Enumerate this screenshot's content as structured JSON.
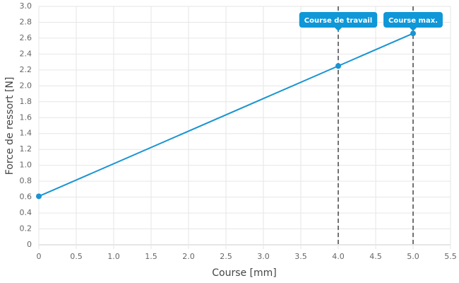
{
  "chart_data": {
    "type": "line",
    "x": [
      0,
      4,
      5
    ],
    "values": [
      0.61,
      2.25,
      2.66
    ],
    "color": "#1a94d2",
    "xlabel": "Course [mm]",
    "ylabel": "Force de ressort [N]",
    "xlim": [
      0,
      5.5
    ],
    "ylim": [
      0,
      3.0
    ],
    "xticks": [
      0,
      0.5,
      {
        "value": 1,
        "label": "1.0"
      },
      1.5,
      {
        "value": 2,
        "label": "2.0"
      },
      2.5,
      {
        "value": 3,
        "label": "3.0"
      },
      3.5,
      {
        "value": 4,
        "label": "4.0"
      },
      4.5,
      {
        "value": 5,
        "label": "5.0"
      },
      5.5
    ],
    "yticks": [
      0,
      0.2,
      0.4,
      0.6,
      0.8,
      {
        "value": 1,
        "label": "1.0"
      },
      1.2,
      1.4,
      1.6,
      1.8,
      {
        "value": 2,
        "label": "2.0"
      },
      2.2,
      2.4,
      2.6,
      2.8,
      {
        "value": 3,
        "label": "3.0"
      }
    ],
    "grid": true,
    "annotations": [
      {
        "x": 4,
        "label": "Course de travail"
      },
      {
        "x": 5,
        "label": "Course max."
      }
    ]
  }
}
